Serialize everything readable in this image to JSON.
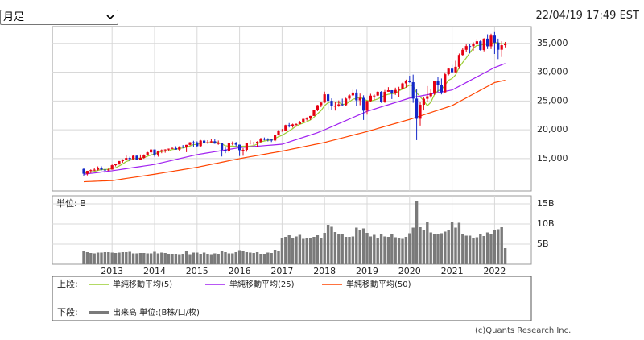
{
  "period_select": "月足",
  "timestamp": "22/04/19 17:49 EST",
  "credit": "(c)Quants Research Inc.",
  "chart_data": {
    "type": "candlestick",
    "grid": true,
    "up_color": "#e60012",
    "down_color": "#1428c8",
    "legend_upper_label": "上段:",
    "legend_lower_label": "下段:",
    "ylim": [
      9400,
      37900
    ],
    "yticks": [
      {
        "value": 15000,
        "label": "15,000"
      },
      {
        "value": 20000,
        "label": "20,000"
      },
      {
        "value": 25000,
        "label": "25,000"
      },
      {
        "value": 30000,
        "label": "30,000"
      },
      {
        "value": 35000,
        "label": "35,000"
      }
    ],
    "categories": [
      null,
      null,
      null,
      null,
      null,
      null,
      null,
      null,
      "2013",
      null,
      null,
      null,
      null,
      null,
      null,
      null,
      null,
      null,
      null,
      null,
      "2014",
      null,
      null,
      null,
      null,
      null,
      null,
      null,
      null,
      null,
      null,
      null,
      "2015",
      null,
      null,
      null,
      null,
      null,
      null,
      null,
      null,
      null,
      null,
      null,
      "2016",
      null,
      null,
      null,
      null,
      null,
      null,
      null,
      null,
      null,
      null,
      null,
      "2017",
      null,
      null,
      null,
      null,
      null,
      null,
      null,
      null,
      null,
      null,
      null,
      "2018",
      null,
      null,
      null,
      null,
      null,
      null,
      null,
      null,
      null,
      null,
      null,
      "2019",
      null,
      null,
      null,
      null,
      null,
      null,
      null,
      null,
      null,
      null,
      null,
      "2020",
      null,
      null,
      null,
      null,
      null,
      null,
      null,
      null,
      null,
      null,
      null,
      "2021",
      null,
      null,
      null,
      null,
      null,
      null,
      null,
      null,
      null,
      null,
      null,
      "2022",
      null,
      null,
      null
    ],
    "open": [
      13210,
      12393,
      12880,
      13009,
      13090,
      13437,
      13096,
      13025,
      13104,
      13860,
      14054,
      14578,
      14839,
      15115,
      14909,
      15499,
      14810,
      15129,
      15545,
      16086,
      16577,
      15698,
      16321,
      16457,
      16580,
      16717,
      16826,
      16563,
      17098,
      17042,
      17390,
      17828,
      17823,
      17164,
      18132,
      17776,
      17840,
      18010,
      17619,
      17690,
      16528,
      16284,
      17663,
      17719,
      17425,
      16466,
      16516,
      17685,
      17773,
      17787,
      17930,
      18432,
      18400,
      18308,
      18142,
      19123,
      19762,
      19864,
      20812,
      20663,
      20940,
      21008,
      21349,
      21891,
      21948,
      22405,
      23377,
      24272,
      24719,
      26149,
      25029,
      24103,
      24163,
      24415,
      24271,
      25415,
      25964,
      26458,
      25116,
      25538,
      23327,
      24999,
      25916,
      25929,
      26593,
      24815,
      26600,
      26864,
      26403,
      26917,
      27046,
      28051,
      28538,
      28256,
      25409,
      21917,
      24346,
      25383,
      25813,
      26428,
      28430,
      27782,
      26502,
      29638,
      30606,
      29983,
      30932,
      32982,
      33875,
      34529,
      34503,
      34935,
      35361,
      33844,
      35820,
      34484,
      36338,
      35132,
      33893,
      34678
    ],
    "high": [
      13340,
      12900,
      13140,
      13330,
      13650,
      13660,
      13290,
      13300,
      13970,
      14150,
      14590,
      14890,
      15540,
      15340,
      15640,
      15660,
      15710,
      15740,
      16170,
      16590,
      16590,
      16400,
      16590,
      16630,
      16740,
      16960,
      17150,
      17160,
      17350,
      17390,
      17890,
      18100,
      18000,
      18240,
      18290,
      18200,
      18350,
      18350,
      18140,
      17700,
      16930,
      17800,
      17980,
      17900,
      17440,
      16780,
      17780,
      18170,
      17900,
      18020,
      18620,
      18670,
      18540,
      18400,
      19150,
      19990,
      20130,
      20890,
      21170,
      21070,
      21110,
      21530,
      21930,
      22180,
      22420,
      23490,
      24330,
      24880,
      26620,
      26310,
      25450,
      24860,
      25090,
      25400,
      25550,
      26170,
      26950,
      26950,
      26280,
      25980,
      25060,
      26240,
      26160,
      26700,
      26700,
      26910,
      27400,
      26870,
      27310,
      27460,
      28170,
      28700,
      29370,
      29570,
      27100,
      24760,
      25760,
      27580,
      27050,
      28500,
      29200,
      28900,
      29960,
      30640,
      31270,
      31960,
      33230,
      34260,
      34810,
      34850,
      35170,
      35630,
      35510,
      35890,
      36570,
      36680,
      36950,
      35820,
      35370,
      35250
    ],
    "low": [
      12040,
      12100,
      12490,
      12880,
      12940,
      12960,
      12470,
      12880,
      13100,
      13650,
      13940,
      14300,
      14750,
      14550,
      14720,
      14760,
      14720,
      14970,
      15540,
      15700,
      15340,
      15340,
      15940,
      16020,
      16330,
      16740,
      16560,
      16330,
      16790,
      16120,
      17290,
      17070,
      17040,
      17040,
      17590,
      17580,
      17790,
      17570,
      17400,
      15370,
      15940,
      16010,
      17320,
      17140,
      15450,
      15500,
      16200,
      17480,
      17330,
      17060,
      17710,
      18160,
      17990,
      17880,
      17880,
      19010,
      19680,
      19830,
      20410,
      20380,
      20550,
      20990,
      21280,
      21600,
      21710,
      22420,
      23240,
      23920,
      24660,
      23360,
      23510,
      23340,
      23990,
      24080,
      24090,
      25120,
      25800,
      24120,
      24270,
      21710,
      22640,
      24880,
      25210,
      25860,
      24680,
      24680,
      26600,
      25340,
      26050,
      25740,
      27050,
      27320,
      28170,
      24680,
      18210,
      20740,
      23360,
      24840,
      25520,
      26060,
      26540,
      26140,
      26340,
      29440,
      29860,
      29860,
      30550,
      32790,
      33470,
      33270,
      33740,
      34690,
      33740,
      33610,
      34010,
      34010,
      33150,
      32270,
      32630,
      34300
    ],
    "close": [
      12393,
      12880,
      13009,
      13090,
      13437,
      13096,
      13025,
      13104,
      13860,
      14054,
      14578,
      14839,
      15115,
      14909,
      15499,
      14810,
      15129,
      15545,
      16086,
      16577,
      15698,
      16321,
      16457,
      16580,
      16717,
      16826,
      16563,
      17098,
      17042,
      17390,
      17828,
      17823,
      17164,
      18132,
      17776,
      17840,
      18010,
      17619,
      17690,
      16528,
      16284,
      17663,
      17719,
      17425,
      16466,
      16516,
      17685,
      17773,
      17787,
      17930,
      18432,
      18400,
      18308,
      18142,
      19123,
      19762,
      19864,
      20812,
      20663,
      20940,
      21008,
      21349,
      21891,
      21948,
      22405,
      23377,
      24272,
      24719,
      26149,
      25029,
      24103,
      24163,
      24415,
      24271,
      25415,
      25964,
      26458,
      25116,
      25538,
      23327,
      24999,
      25916,
      25929,
      26593,
      24815,
      26600,
      26864,
      26403,
      26917,
      27046,
      28051,
      28538,
      28256,
      25409,
      21917,
      24346,
      25383,
      25813,
      26428,
      28430,
      27782,
      26502,
      29638,
      30606,
      29983,
      30932,
      32982,
      33875,
      34529,
      34503,
      34935,
      35361,
      33844,
      35820,
      34484,
      36338,
      35132,
      33893,
      34678,
      34911
    ],
    "series": [
      {
        "name": "単純移動平均(5)",
        "color": "#9acd32",
        "values": [
          12500,
          12600,
          12700,
          12800,
          12960,
          13100,
          13130,
          13150,
          13300,
          13430,
          13720,
          14090,
          14490,
          14700,
          15000,
          15030,
          15090,
          15180,
          15410,
          15630,
          15810,
          16050,
          16230,
          16330,
          16350,
          16580,
          16630,
          16760,
          16850,
          16980,
          17180,
          17440,
          17450,
          17670,
          17740,
          17750,
          17780,
          17880,
          17790,
          17540,
          17230,
          17160,
          17180,
          17120,
          17110,
          17160,
          17160,
          17170,
          17250,
          17540,
          17920,
          18060,
          18170,
          18240,
          18480,
          18810,
          19040,
          19420,
          19800,
          20210,
          20660,
          20950,
          21170,
          21430,
          21720,
          22190,
          22780,
          23340,
          24180,
          24710,
          24850,
          24830,
          24770,
          24400,
          24470,
          24850,
          25300,
          25450,
          25700,
          25280,
          25090,
          24980,
          25140,
          25350,
          25650,
          25970,
          26160,
          26260,
          26320,
          26770,
          27060,
          27390,
          27760,
          27660,
          26430,
          25690,
          25060,
          24170,
          24780,
          26080,
          26770,
          26990,
          27760,
          28590,
          28900,
          29530,
          30830,
          31680,
          32460,
          33360,
          34160,
          34640,
          34630,
          34890,
          34790,
          34970,
          35120,
          35100,
          34870,
          34990
        ]
      },
      {
        "name": "単純移動平均(25)",
        "color": "#a020f0",
        "values": [
          12300,
          12370,
          12450,
          12520,
          12600,
          12680,
          12760,
          12830,
          12900,
          12990,
          13080,
          13170,
          13260,
          13360,
          13450,
          13540,
          13630,
          13720,
          13810,
          13900,
          14000,
          14140,
          14280,
          14420,
          14560,
          14700,
          14850,
          15000,
          15140,
          15280,
          15420,
          15560,
          15700,
          15800,
          15900,
          16000,
          16100,
          16200,
          16300,
          16400,
          16500,
          16600,
          16700,
          16800,
          16900,
          16950,
          17000,
          17050,
          17100,
          17150,
          17200,
          17250,
          17300,
          17350,
          17400,
          17450,
          17500,
          17700,
          17900,
          18100,
          18300,
          18500,
          18700,
          18900,
          19100,
          19300,
          19500,
          19750,
          20000,
          20270,
          20530,
          20800,
          21070,
          21330,
          21600,
          21870,
          22130,
          22400,
          22670,
          22930,
          23200,
          23390,
          23580,
          23780,
          23970,
          24160,
          24350,
          24540,
          24730,
          24920,
          25120,
          25310,
          25500,
          25620,
          25730,
          25850,
          25970,
          26080,
          26200,
          26320,
          26430,
          26550,
          26670,
          26780,
          26900,
          27230,
          27550,
          27880,
          28200,
          28530,
          28850,
          29180,
          29500,
          29830,
          30150,
          30480,
          30800,
          31030,
          31270,
          31500
        ]
      },
      {
        "name": "単純移動平均(50)",
        "color": "#ff4500",
        "values": [
          11000,
          11030,
          11050,
          11080,
          11100,
          11130,
          11150,
          11180,
          11200,
          11290,
          11380,
          11480,
          11570,
          11660,
          11750,
          11840,
          11930,
          12020,
          12120,
          12210,
          12300,
          12400,
          12500,
          12600,
          12700,
          12800,
          12900,
          13000,
          13100,
          13200,
          13300,
          13400,
          13500,
          13630,
          13750,
          13880,
          14000,
          14130,
          14250,
          14380,
          14500,
          14630,
          14750,
          14880,
          15000,
          15110,
          15220,
          15330,
          15430,
          15540,
          15650,
          15760,
          15870,
          15980,
          16080,
          16190,
          16300,
          16430,
          16550,
          16680,
          16800,
          16930,
          17050,
          17180,
          17300,
          17430,
          17550,
          17680,
          17800,
          17960,
          18120,
          18280,
          18430,
          18590,
          18750,
          18910,
          19070,
          19230,
          19380,
          19540,
          19700,
          19880,
          20050,
          20230,
          20400,
          20580,
          20750,
          20930,
          21100,
          21280,
          21450,
          21630,
          21800,
          22000,
          22200,
          22400,
          22600,
          22800,
          23000,
          23200,
          23400,
          23600,
          23800,
          24000,
          24200,
          24530,
          24870,
          25200,
          25530,
          25870,
          26200,
          26530,
          26870,
          27200,
          27530,
          27870,
          28200,
          28330,
          28470,
          28600
        ]
      }
    ],
    "volume": {
      "name": "出来高 単位:(B株/口/枚)",
      "unit_label": "単位: B",
      "color": "#7a7a7a",
      "ylim": [
        0,
        17
      ],
      "yticks": [
        {
          "value": 5,
          "label": "5B"
        },
        {
          "value": 10,
          "label": "10B"
        },
        {
          "value": 15,
          "label": "15B"
        }
      ],
      "values": [
        3.2,
        3.0,
        2.8,
        2.7,
        2.9,
        2.9,
        3.0,
        3.0,
        2.9,
        2.8,
        2.9,
        3.0,
        3.0,
        3.1,
        2.7,
        2.7,
        2.8,
        2.8,
        2.7,
        2.7,
        3.1,
        2.7,
        2.9,
        2.8,
        2.6,
        2.6,
        2.6,
        2.5,
        2.6,
        3.2,
        2.5,
        2.9,
        2.9,
        2.6,
        2.9,
        2.6,
        2.5,
        2.7,
        2.6,
        3.2,
        3.0,
        2.7,
        2.7,
        3.0,
        3.5,
        3.4,
        3.0,
        2.9,
        2.8,
        3.0,
        2.6,
        2.6,
        2.9,
        2.8,
        3.6,
        3.2,
        6.5,
        6.8,
        7.2,
        6.5,
        6.9,
        7.3,
        6.3,
        6.6,
        6.4,
        6.8,
        7.2,
        6.6,
        7.8,
        9.8,
        9.3,
        8.0,
        7.5,
        7.6,
        6.8,
        6.8,
        6.9,
        9.1,
        8.4,
        8.9,
        7.8,
        6.9,
        7.3,
        6.6,
        7.6,
        6.9,
        6.8,
        7.5,
        6.7,
        6.6,
        6.3,
        6.8,
        7.7,
        9.1,
        15.6,
        9.2,
        8.5,
        10.6,
        7.9,
        7.5,
        7.4,
        7.7,
        8.1,
        8.4,
        10.4,
        9.1,
        10.3,
        7.5,
        7.1,
        7.1,
        6.5,
        6.7,
        7.4,
        7.0,
        7.9,
        7.6,
        8.5,
        8.7,
        9.2,
        4.0
      ]
    }
  }
}
